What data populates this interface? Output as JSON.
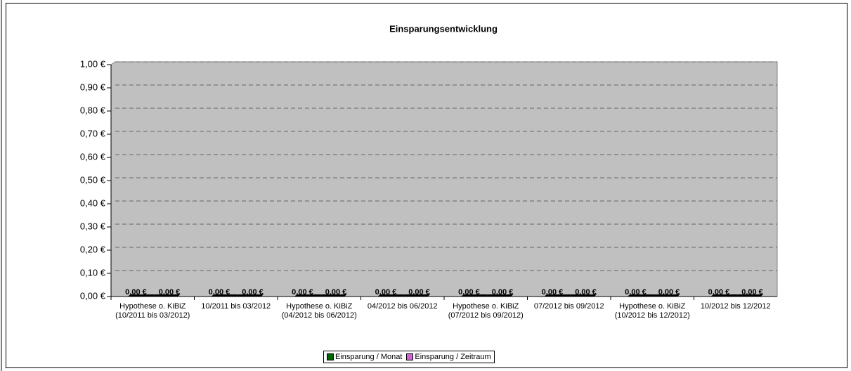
{
  "chart_data": {
    "type": "bar",
    "title": "Einsparungsentwicklung",
    "categories": [
      "Hypothese o. KiBiZ (10/2011 bis 03/2012)",
      "10/2011 bis 03/2012",
      "Hypothese o. KiBiZ (04/2012 bis 06/2012)",
      "04/2012 bis 06/2012",
      "Hypothese o. KiBiZ (07/2012 bis 09/2012)",
      "07/2012 bis 09/2012",
      "Hypothese o. KiBiZ (10/2012 bis 12/2012)",
      "10/2012 bis 12/2012"
    ],
    "series": [
      {
        "name": "Einsparung / Monat",
        "color": "#006400",
        "values": [
          0,
          0,
          0,
          0,
          0,
          0,
          0,
          0
        ],
        "value_labels": [
          "0,00 €",
          "0,00 €",
          "0,00 €",
          "0,00 €",
          "0,00 €",
          "0,00 €",
          "0,00 €",
          "0,00 €"
        ]
      },
      {
        "name": "Einsparung / Zeitraum",
        "color": "#cc66cc",
        "values": [
          0,
          0,
          0,
          0,
          0,
          0,
          0,
          0
        ],
        "value_labels": [
          "0,00 €",
          "0,00 €",
          "0,00 €",
          "0,00 €",
          "0,00 €",
          "0,00 €",
          "0,00 €",
          "0,00 €"
        ]
      }
    ],
    "ylim": [
      0,
      1
    ],
    "yticks": [
      {
        "value": 0,
        "label": "0,00 €"
      },
      {
        "value": 0.1,
        "label": "0,10 €"
      },
      {
        "value": 0.2,
        "label": "0,20 €"
      },
      {
        "value": 0.3,
        "label": "0,30 €"
      },
      {
        "value": 0.4,
        "label": "0,40 €"
      },
      {
        "value": 0.5,
        "label": "0,50 €"
      },
      {
        "value": 0.6,
        "label": "0,60 €"
      },
      {
        "value": 0.7,
        "label": "0,70 €"
      },
      {
        "value": 0.8,
        "label": "0,80 €"
      },
      {
        "value": 0.9,
        "label": "0,90 €"
      },
      {
        "value": 1,
        "label": "1,00 €"
      }
    ],
    "grid": true,
    "legend": "bottom"
  }
}
